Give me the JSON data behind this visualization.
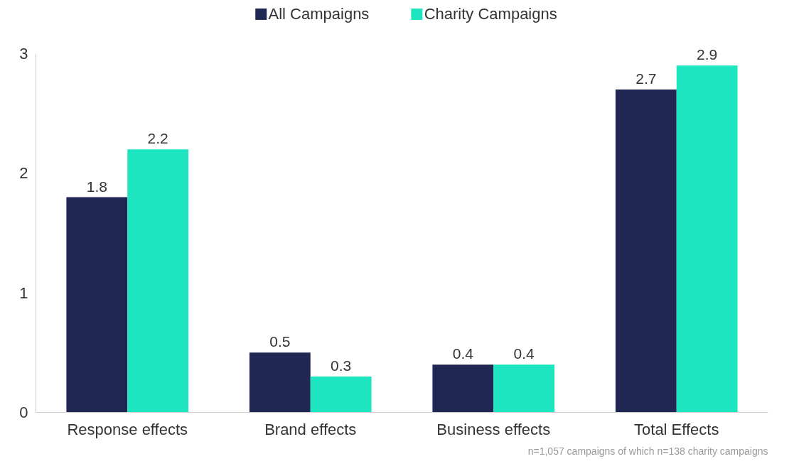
{
  "chart_data": {
    "type": "bar",
    "categories": [
      "Response effects",
      "Brand effects",
      "Business effects",
      "Total Effects"
    ],
    "series": [
      {
        "name": "All Campaigns",
        "color": "#1f2752",
        "values": [
          1.8,
          0.5,
          0.4,
          2.7
        ]
      },
      {
        "name": "Charity Campaigns",
        "color": "#1de5c0",
        "values": [
          2.2,
          0.3,
          0.4,
          2.9
        ]
      }
    ],
    "ylim": [
      0,
      3
    ],
    "yticks": [
      0,
      1,
      2,
      3
    ],
    "grid": false,
    "legend": "top",
    "data_labels": true,
    "annotations": [
      "n=1,057 campaigns of which n=138 charity campaigns"
    ]
  }
}
